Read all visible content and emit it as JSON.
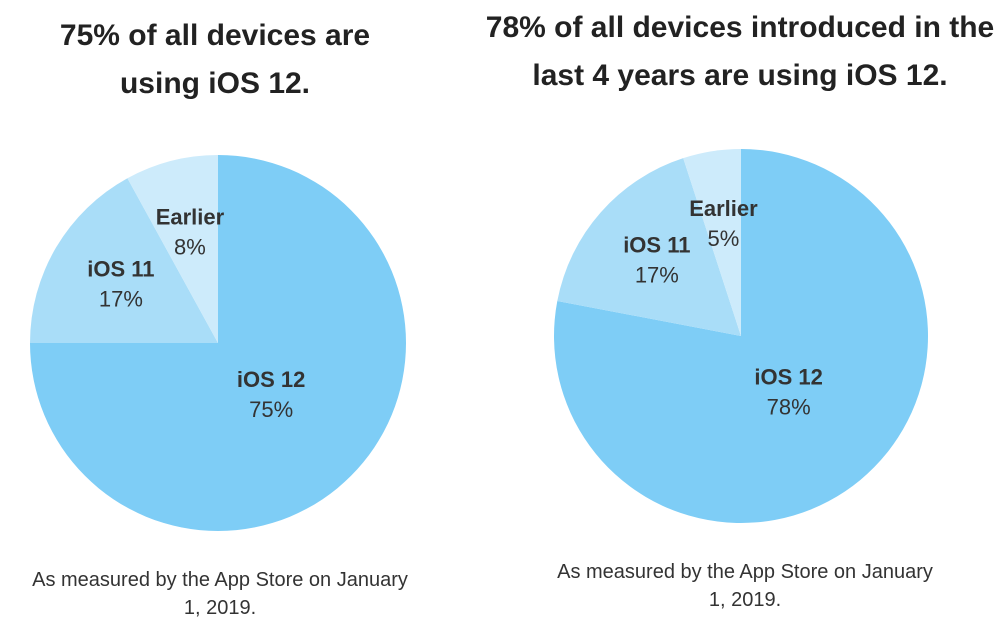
{
  "chart_data": [
    {
      "type": "pie",
      "title": "75% of all devices are using iOS 12.",
      "categories": [
        "iOS 12",
        "iOS 11",
        "Earlier"
      ],
      "values": [
        75,
        17,
        8
      ],
      "value_labels": [
        "75%",
        "17%",
        "8%"
      ],
      "colors": [
        "#7ecdf6",
        "#a9ddf8",
        "#cdebfb"
      ],
      "note": "As measured by the App Store on January 1, 2019."
    },
    {
      "type": "pie",
      "title": "78% of all devices introduced in the last 4 years are using iOS 12.",
      "categories": [
        "iOS 12",
        "iOS 11",
        "Earlier"
      ],
      "values": [
        78,
        17,
        5
      ],
      "value_labels": [
        "78%",
        "17%",
        "5%"
      ],
      "colors": [
        "#7ecdf6",
        "#a9ddf8",
        "#cdebfb"
      ],
      "note": "As measured by the App Store on January 1, 2019."
    }
  ]
}
